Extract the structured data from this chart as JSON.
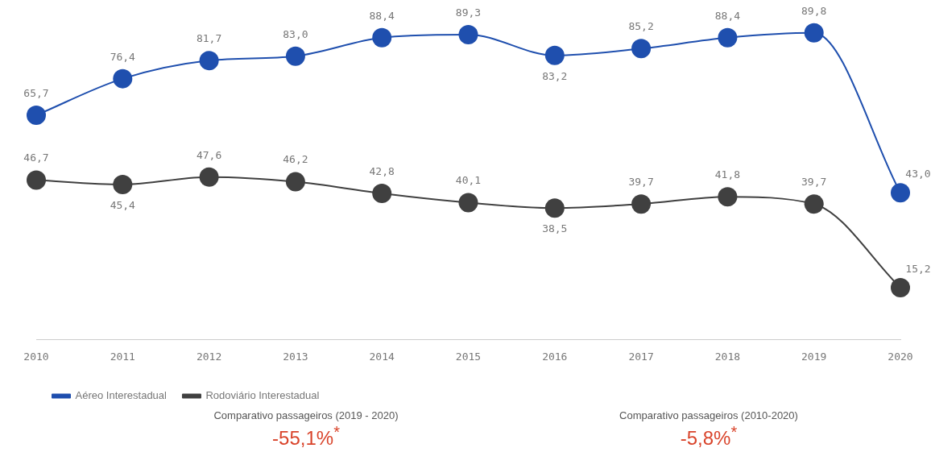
{
  "chart_data": {
    "type": "line",
    "categories": [
      "2010",
      "2011",
      "2012",
      "2013",
      "2014",
      "2015",
      "2016",
      "2017",
      "2018",
      "2019",
      "2020"
    ],
    "series": [
      {
        "name": "Aéreo Interestadual",
        "color": "#1f4fae",
        "values": [
          65.7,
          76.4,
          81.7,
          83.0,
          88.4,
          89.3,
          83.2,
          85.2,
          88.4,
          89.8,
          43.0
        ],
        "value_labels": [
          "65,7",
          "76,4",
          "81,7",
          "83,0",
          "88,4",
          "89,3",
          "83,2",
          "85,2",
          "88,4",
          "89,8",
          "43,0"
        ]
      },
      {
        "name": "Rodoviário Interestadual",
        "color": "#404040",
        "values": [
          46.7,
          45.4,
          47.6,
          46.2,
          42.8,
          40.1,
          38.5,
          39.7,
          41.8,
          39.7,
          15.2
        ],
        "value_labels": [
          "46,7",
          "45,4",
          "47,6",
          "46,2",
          "42,8",
          "40,1",
          "38,5",
          "39,7",
          "41,8",
          "39,7",
          "15,2"
        ]
      }
    ],
    "tick_labels": "x",
    "grid": false,
    "legend": "bottom left",
    "marker": "circle",
    "line_style": "solid",
    "annotations": [
      "Comparativo passageiros (2019 - 2020)",
      "-55,1%$^{*}$",
      "Comparativo passageiros (2010-2020)",
      "-5,8%$^{*}$"
    ]
  }
}
